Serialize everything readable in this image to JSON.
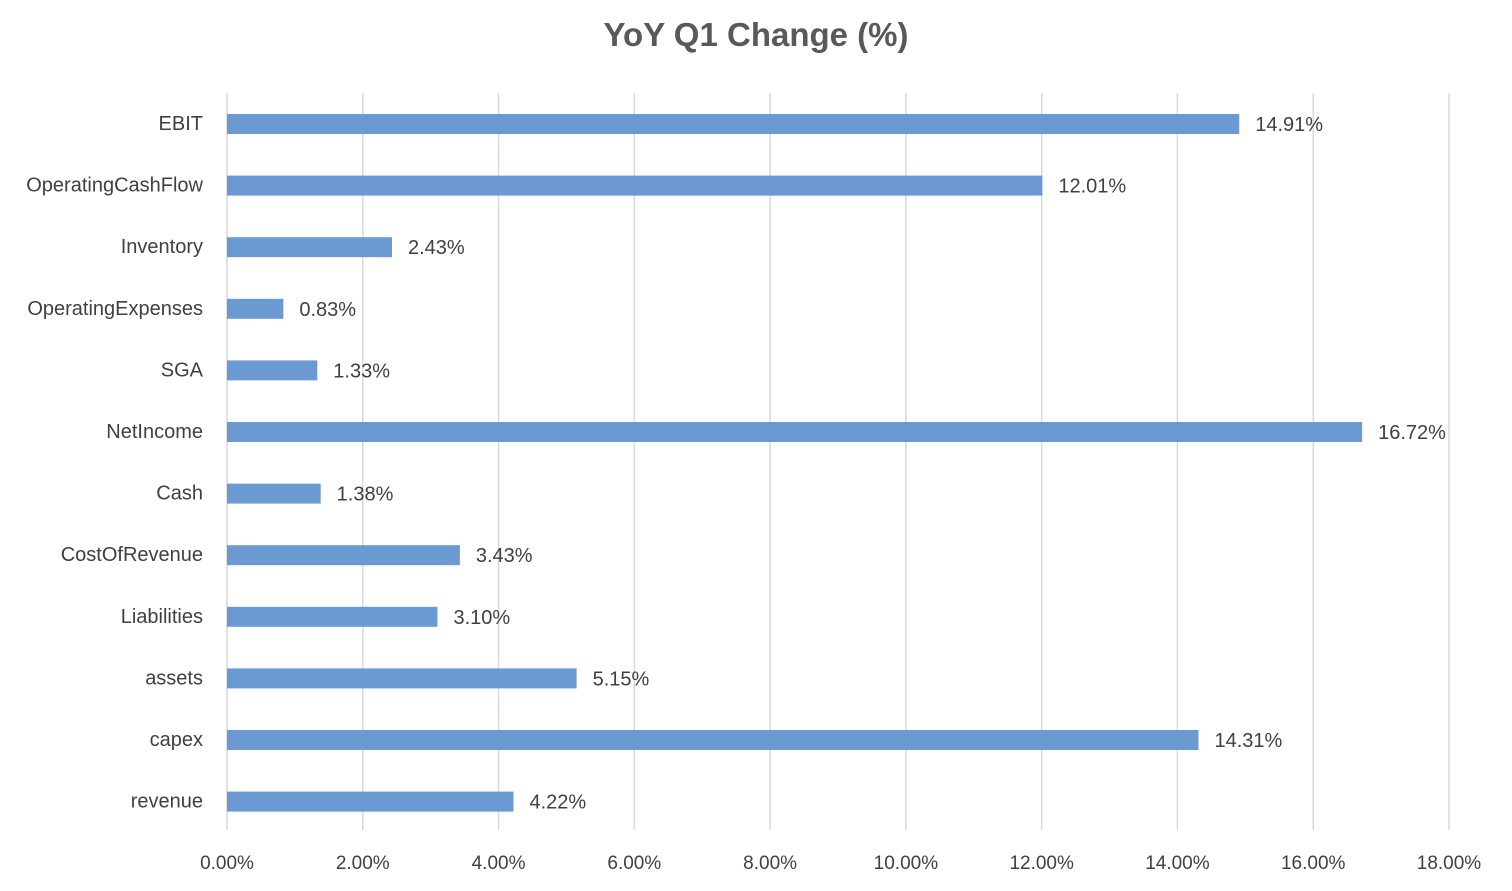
{
  "chart_data": {
    "type": "bar",
    "orientation": "horizontal",
    "title": "YoY Q1 Change (%)",
    "xlabel": "",
    "ylabel": "",
    "xlim": [
      0,
      18
    ],
    "x_ticks": [
      0,
      2,
      4,
      6,
      8,
      10,
      12,
      14,
      16,
      18
    ],
    "x_tick_labels": [
      "0.00%",
      "2.00%",
      "4.00%",
      "6.00%",
      "8.00%",
      "10.00%",
      "12.00%",
      "14.00%",
      "16.00%",
      "18.00%"
    ],
    "grid": "vertical",
    "legend": "none",
    "bar_color": "#6A9AD1",
    "grid_color": "#D9D9D9",
    "categories": [
      "EBIT",
      "OperatingCashFlow",
      "Inventory",
      "OperatingExpenses",
      "SGA",
      "NetIncome",
      "Cash",
      "CostOfRevenue",
      "Liabilities",
      "assets",
      "capex",
      "revenue"
    ],
    "values": [
      14.91,
      12.01,
      2.43,
      0.83,
      1.33,
      16.72,
      1.38,
      3.43,
      3.1,
      5.15,
      14.31,
      4.22
    ],
    "data_labels": [
      "14.91%",
      "12.01%",
      "2.43%",
      "0.83%",
      "1.33%",
      "16.72%",
      "1.38%",
      "3.43%",
      "3.10%",
      "5.15%",
      "14.31%",
      "4.22%"
    ]
  }
}
